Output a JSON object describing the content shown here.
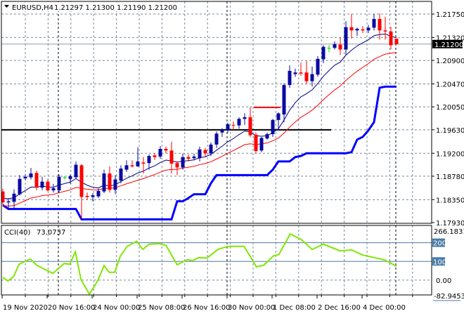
{
  "header": {
    "menu_icon": "triangle-down-icon",
    "symbol": "EURUSD,H4",
    "ohlc": "1.21297 1.21300 1.21190 1.21200"
  },
  "colors": {
    "bull": "#0a0aa0",
    "bear": "#ff0000",
    "doji": "#00dd00",
    "fast_ma": "#000080",
    "slow_ma": "#ff0000",
    "stop_line": "#0000ff",
    "cci": "#80e800",
    "grid": "#778899",
    "current_price_bg": "#000000"
  },
  "current_price": {
    "value": 1.212,
    "label": "1.21200"
  },
  "chart_data": [
    {
      "type": "candlestick",
      "title": "EURUSD,H4",
      "ylim": [
        1.1793,
        1.2175
      ],
      "y_ticks": [
        "1.21750",
        "1.21320",
        "1.20900",
        "1.20470",
        "1.20050",
        "1.19630",
        "1.19200",
        "1.18780",
        "1.18350",
        "1.17930"
      ],
      "x_ticks": [
        {
          "candle": 0,
          "label": "19 Nov 2020"
        },
        {
          "candle": 8,
          "label": "20 Nov 16:00"
        },
        {
          "candle": 16,
          "label": "24 Nov 00:00"
        },
        {
          "candle": 24,
          "label": "25 Nov 08:00"
        },
        {
          "candle": 32,
          "label": "26 Nov 16:00"
        },
        {
          "candle": 40,
          "label": "30 Nov 00:00"
        },
        {
          "candle": 48,
          "label": "1 Dec 08:00"
        },
        {
          "candle": 56,
          "label": "2 Dec 16:00"
        },
        {
          "candle": 64,
          "label": "4 Dec 00:00"
        }
      ],
      "day_separators": [
        10,
        40,
        70
      ],
      "horizontal_lines": [
        {
          "price": 1.1963,
          "from": 0,
          "to": 58,
          "color": "#000000"
        },
        {
          "price": 1.2004,
          "from": 45,
          "to": 49,
          "color": "#ff0000"
        }
      ],
      "ohlc": [
        [
          1.185,
          1.1855,
          1.1825,
          1.183
        ],
        [
          1.183,
          1.1838,
          1.1818,
          1.1832
        ],
        [
          1.1831,
          1.1854,
          1.1818,
          1.1846
        ],
        [
          1.1845,
          1.188,
          1.1843,
          1.1873
        ],
        [
          1.1874,
          1.1882,
          1.187,
          1.1877
        ],
        [
          1.1876,
          1.1893,
          1.1872,
          1.1883
        ],
        [
          1.1884,
          1.1888,
          1.1852,
          1.1857
        ],
        [
          1.1857,
          1.1877,
          1.1852,
          1.1868
        ],
        [
          1.1868,
          1.1872,
          1.185,
          1.1852
        ],
        [
          1.1852,
          1.1864,
          1.1848,
          1.1856
        ],
        [
          1.1852,
          1.1881,
          1.1848,
          1.1877
        ],
        [
          1.1876,
          1.1878,
          1.1872,
          1.1876
        ],
        [
          1.1873,
          1.1881,
          1.1864,
          1.1878
        ],
        [
          1.1876,
          1.1905,
          1.1873,
          1.1899
        ],
        [
          1.1898,
          1.19,
          1.1799,
          1.184
        ],
        [
          1.1842,
          1.1848,
          1.1835,
          1.184
        ],
        [
          1.184,
          1.1847,
          1.1832,
          1.1843
        ],
        [
          1.1841,
          1.1855,
          1.1838,
          1.1851
        ],
        [
          1.185,
          1.189,
          1.1847,
          1.1883
        ],
        [
          1.1883,
          1.1896,
          1.1848,
          1.1853
        ],
        [
          1.1853,
          1.188,
          1.1845,
          1.1872
        ],
        [
          1.187,
          1.1898,
          1.1865,
          1.1892
        ],
        [
          1.189,
          1.1907,
          1.1886,
          1.1898
        ],
        [
          1.1898,
          1.1907,
          1.1894,
          1.1896
        ],
        [
          1.1896,
          1.1931,
          1.1895,
          1.1905
        ],
        [
          1.1903,
          1.1913,
          1.1883,
          1.1901
        ],
        [
          1.1902,
          1.1918,
          1.189,
          1.1915
        ],
        [
          1.1916,
          1.192,
          1.1908,
          1.1913
        ],
        [
          1.1914,
          1.1933,
          1.191,
          1.1928
        ],
        [
          1.1928,
          1.1932,
          1.192,
          1.1925
        ],
        [
          1.1925,
          1.1941,
          1.1883,
          1.1901
        ],
        [
          1.1902,
          1.1905,
          1.188,
          1.1894
        ],
        [
          1.1894,
          1.1919,
          1.189,
          1.1913
        ],
        [
          1.1913,
          1.1918,
          1.1905,
          1.191
        ],
        [
          1.1911,
          1.1919,
          1.1907,
          1.1914
        ],
        [
          1.1911,
          1.1932,
          1.1905,
          1.1927
        ],
        [
          1.1926,
          1.193,
          1.1913,
          1.192
        ],
        [
          1.192,
          1.194,
          1.1915,
          1.1936
        ],
        [
          1.1936,
          1.196,
          1.193,
          1.1956
        ],
        [
          1.1958,
          1.1966,
          1.195,
          1.1963
        ],
        [
          1.1962,
          1.1976,
          1.1958,
          1.1973
        ],
        [
          1.1972,
          1.1978,
          1.1963,
          1.1971
        ],
        [
          1.1971,
          1.1986,
          1.1965,
          1.1983
        ],
        [
          1.1983,
          1.1993,
          1.1972,
          1.1986
        ],
        [
          1.1986,
          1.2004,
          1.195,
          1.1953
        ],
        [
          1.1954,
          1.1958,
          1.192,
          1.1924
        ],
        [
          1.1925,
          1.195,
          1.1922,
          1.1948
        ],
        [
          1.1947,
          1.1958,
          1.1945,
          1.1955
        ],
        [
          1.1955,
          1.1983,
          1.195,
          1.1981
        ],
        [
          1.1981,
          1.1995,
          1.1962,
          1.1993
        ],
        [
          1.1991,
          1.2048,
          1.1977,
          1.2045
        ],
        [
          1.2045,
          1.2081,
          1.204,
          1.2071
        ],
        [
          1.2065,
          1.2075,
          1.206,
          1.2068
        ],
        [
          1.2068,
          1.2086,
          1.2062,
          1.2066
        ],
        [
          1.2068,
          1.2089,
          1.2047,
          1.2052
        ],
        [
          1.2052,
          1.2079,
          1.2042,
          1.2065
        ],
        [
          1.2064,
          1.2098,
          1.206,
          1.2093
        ],
        [
          1.2092,
          1.2118,
          1.2085,
          1.2115
        ],
        [
          1.2113,
          1.2118,
          1.2105,
          1.2113
        ],
        [
          1.2113,
          1.2125,
          1.211,
          1.212
        ],
        [
          1.2119,
          1.2132,
          1.21,
          1.211
        ],
        [
          1.211,
          1.2162,
          1.21,
          1.2151
        ],
        [
          1.2151,
          1.2175,
          1.213,
          1.2145
        ],
        [
          1.2145,
          1.215,
          1.2135,
          1.2148
        ],
        [
          1.2147,
          1.2153,
          1.214,
          1.2145
        ],
        [
          1.2145,
          1.2155,
          1.214,
          1.215
        ],
        [
          1.215,
          1.2175,
          1.2145,
          1.2166
        ],
        [
          1.2166,
          1.2176,
          1.2128,
          1.2145
        ],
        [
          1.2145,
          1.217,
          1.2128,
          1.2143
        ],
        [
          1.2143,
          1.2152,
          1.211,
          1.2118
        ],
        [
          1.213,
          1.213,
          1.2119,
          1.212
        ]
      ]
    },
    {
      "type": "line",
      "title": "CCI(40)",
      "value_label": "73.0737",
      "ylim": [
        -82.9453,
        266.1831
      ],
      "y_labels": {
        "max": "266.1831",
        "min": "-82.9453",
        "zero": "0.00",
        "levels": [
          "200",
          "100"
        ]
      },
      "points": [
        [
          0,
          14
        ],
        [
          0.9,
          -4
        ],
        [
          1.9,
          18
        ],
        [
          2.9,
          85
        ],
        [
          4.9,
          113
        ],
        [
          6,
          80
        ],
        [
          8.9,
          36
        ],
        [
          10.9,
          89
        ],
        [
          11.9,
          85
        ],
        [
          12.9,
          151
        ],
        [
          13.9,
          3
        ],
        [
          15.4,
          -75
        ],
        [
          16.9,
          -2
        ],
        [
          18,
          78
        ],
        [
          18.9,
          42
        ],
        [
          19.9,
          42
        ],
        [
          20.9,
          129
        ],
        [
          22.1,
          180
        ],
        [
          23.8,
          208
        ],
        [
          24.9,
          164
        ],
        [
          26,
          192
        ],
        [
          27.8,
          195
        ],
        [
          29,
          186
        ],
        [
          31,
          82
        ],
        [
          32.8,
          109
        ],
        [
          33.8,
          105
        ],
        [
          34.8,
          120
        ],
        [
          36.3,
          118
        ],
        [
          38.3,
          165
        ],
        [
          40.1,
          181
        ],
        [
          42.9,
          181
        ],
        [
          45.1,
          71
        ],
        [
          46.4,
          80
        ],
        [
          48.1,
          129
        ],
        [
          49.1,
          137
        ],
        [
          51.1,
          247
        ],
        [
          53.1,
          216
        ],
        [
          55,
          164
        ],
        [
          57,
          192
        ],
        [
          60,
          156
        ],
        [
          62,
          162
        ],
        [
          64,
          134
        ],
        [
          66,
          121
        ],
        [
          68,
          107
        ],
        [
          70,
          74
        ]
      ]
    }
  ]
}
